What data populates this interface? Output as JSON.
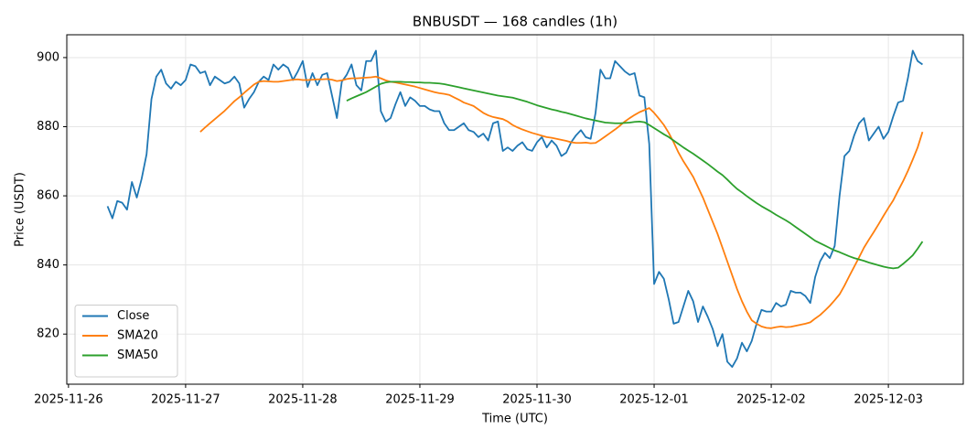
{
  "chart_data": {
    "type": "line",
    "title": "BNBUSDT — 168 candles (1h)",
    "x_label": "Time (UTC)",
    "y_label": "Price (USDT)",
    "x": [
      "2025-11-26T08:00",
      "2025-11-26T09:00",
      "2025-11-26T10:00",
      "2025-11-26T11:00",
      "2025-11-26T12:00",
      "2025-11-26T13:00",
      "2025-11-26T14:00",
      "2025-11-26T15:00",
      "2025-11-26T16:00",
      "2025-11-26T17:00",
      "2025-11-26T18:00",
      "2025-11-26T19:00",
      "2025-11-26T20:00",
      "2025-11-26T21:00",
      "2025-11-26T22:00",
      "2025-11-26T23:00",
      "2025-11-27T00:00",
      "2025-11-27T01:00",
      "2025-11-27T02:00",
      "2025-11-27T03:00",
      "2025-11-27T04:00",
      "2025-11-27T05:00",
      "2025-11-27T06:00",
      "2025-11-27T07:00",
      "2025-11-27T08:00",
      "2025-11-27T09:00",
      "2025-11-27T10:00",
      "2025-11-27T11:00",
      "2025-11-27T12:00",
      "2025-11-27T13:00",
      "2025-11-27T14:00",
      "2025-11-27T15:00",
      "2025-11-27T16:00",
      "2025-11-27T17:00",
      "2025-11-27T18:00",
      "2025-11-27T19:00",
      "2025-11-27T20:00",
      "2025-11-27T21:00",
      "2025-11-27T22:00",
      "2025-11-27T23:00",
      "2025-11-28T00:00",
      "2025-11-28T01:00",
      "2025-11-28T02:00",
      "2025-11-28T03:00",
      "2025-11-28T04:00",
      "2025-11-28T05:00",
      "2025-11-28T06:00",
      "2025-11-28T07:00",
      "2025-11-28T08:00",
      "2025-11-28T09:00",
      "2025-11-28T10:00",
      "2025-11-28T11:00",
      "2025-11-28T12:00",
      "2025-11-28T13:00",
      "2025-11-28T14:00",
      "2025-11-28T15:00",
      "2025-11-28T16:00",
      "2025-11-28T17:00",
      "2025-11-28T18:00",
      "2025-11-28T19:00",
      "2025-11-28T20:00",
      "2025-11-28T21:00",
      "2025-11-28T22:00",
      "2025-11-28T23:00",
      "2025-11-29T00:00",
      "2025-11-29T01:00",
      "2025-11-29T02:00",
      "2025-11-29T03:00",
      "2025-11-29T04:00",
      "2025-11-29T05:00",
      "2025-11-29T06:00",
      "2025-11-29T07:00",
      "2025-11-29T08:00",
      "2025-11-29T09:00",
      "2025-11-29T10:00",
      "2025-11-29T11:00",
      "2025-11-29T12:00",
      "2025-11-29T13:00",
      "2025-11-29T14:00",
      "2025-11-29T15:00",
      "2025-11-29T16:00",
      "2025-11-29T17:00",
      "2025-11-29T18:00",
      "2025-11-29T19:00",
      "2025-11-29T20:00",
      "2025-11-29T21:00",
      "2025-11-29T22:00",
      "2025-11-29T23:00",
      "2025-11-30T00:00",
      "2025-11-30T01:00",
      "2025-11-30T02:00",
      "2025-11-30T03:00",
      "2025-11-30T04:00",
      "2025-11-30T05:00",
      "2025-11-30T06:00",
      "2025-11-30T07:00",
      "2025-11-30T08:00",
      "2025-11-30T09:00",
      "2025-11-30T10:00",
      "2025-11-30T11:00",
      "2025-11-30T12:00",
      "2025-11-30T13:00",
      "2025-11-30T14:00",
      "2025-11-30T15:00",
      "2025-11-30T16:00",
      "2025-11-30T17:00",
      "2025-11-30T18:00",
      "2025-11-30T19:00",
      "2025-11-30T20:00",
      "2025-11-30T21:00",
      "2025-11-30T22:00",
      "2025-11-30T23:00",
      "2025-12-01T00:00",
      "2025-12-01T01:00",
      "2025-12-01T02:00",
      "2025-12-01T03:00",
      "2025-12-01T04:00",
      "2025-12-01T05:00",
      "2025-12-01T06:00",
      "2025-12-01T07:00",
      "2025-12-01T08:00",
      "2025-12-01T09:00",
      "2025-12-01T10:00",
      "2025-12-01T11:00",
      "2025-12-01T12:00",
      "2025-12-01T13:00",
      "2025-12-01T14:00",
      "2025-12-01T15:00",
      "2025-12-01T16:00",
      "2025-12-01T17:00",
      "2025-12-01T18:00",
      "2025-12-01T19:00",
      "2025-12-01T20:00",
      "2025-12-01T21:00",
      "2025-12-01T22:00",
      "2025-12-01T23:00",
      "2025-12-02T00:00",
      "2025-12-02T01:00",
      "2025-12-02T02:00",
      "2025-12-02T03:00",
      "2025-12-02T04:00",
      "2025-12-02T05:00",
      "2025-12-02T06:00",
      "2025-12-02T07:00",
      "2025-12-02T08:00",
      "2025-12-02T09:00",
      "2025-12-02T10:00",
      "2025-12-02T11:00",
      "2025-12-02T12:00",
      "2025-12-02T13:00",
      "2025-12-02T14:00",
      "2025-12-02T15:00",
      "2025-12-02T16:00",
      "2025-12-02T17:00",
      "2025-12-02T18:00",
      "2025-12-02T19:00",
      "2025-12-02T20:00",
      "2025-12-02T21:00",
      "2025-12-02T22:00",
      "2025-12-02T23:00",
      "2025-12-03T00:00",
      "2025-12-03T01:00",
      "2025-12-03T02:00",
      "2025-12-03T03:00",
      "2025-12-03T04:00",
      "2025-12-03T05:00",
      "2025-12-03T06:00",
      "2025-12-03T07:00"
    ],
    "series": [
      {
        "name": "Close",
        "color": "#1f77b4",
        "values": [
          857,
          853.5,
          858.5,
          858,
          856,
          864,
          859.5,
          865,
          872,
          888,
          894.5,
          896.5,
          892.5,
          891,
          893,
          892,
          893.5,
          898,
          897.5,
          895.5,
          896,
          892,
          894.5,
          893.5,
          892.5,
          893,
          894.5,
          892.5,
          885.5,
          888,
          890,
          893,
          894.5,
          893.5,
          898,
          896.5,
          898,
          897,
          893.5,
          896,
          899,
          891.5,
          895.5,
          892,
          895,
          895.5,
          889,
          882.5,
          893,
          895,
          898,
          892,
          890.5,
          899,
          899,
          902,
          884.5,
          881.5,
          882.5,
          886.5,
          890,
          886,
          888.5,
          887.5,
          886,
          886,
          885,
          884.5,
          884.5,
          881,
          879,
          879,
          880,
          881,
          879,
          878.5,
          877,
          878,
          876,
          881,
          881.5,
          873,
          874,
          873,
          874.5,
          875.5,
          873.5,
          873,
          875.5,
          877,
          874,
          876,
          874.5,
          871.5,
          872.5,
          875.5,
          877.5,
          879,
          877,
          876.5,
          884,
          896.5,
          894,
          894,
          899,
          897.5,
          896,
          895,
          895.5,
          889,
          888.5,
          875,
          834.5,
          838,
          836,
          830,
          823,
          823.5,
          828,
          832.5,
          829.5,
          823.5,
          828,
          825,
          821.5,
          816.5,
          820,
          812,
          810.5,
          813,
          817.5,
          815,
          818,
          823,
          827,
          826.5,
          826.5,
          829,
          828,
          828.5,
          832.5,
          832,
          832,
          831,
          829,
          836.5,
          841,
          843.5,
          842,
          845.5,
          860,
          871.5,
          873,
          877.5,
          881,
          882.5,
          876,
          878,
          880,
          876.5,
          878.5,
          883,
          887,
          887.5,
          894,
          902,
          899,
          898
        ]
      },
      {
        "name": "SMA20",
        "color": "#ff7f0e",
        "values": [
          null,
          null,
          null,
          null,
          null,
          null,
          null,
          null,
          null,
          null,
          null,
          null,
          null,
          null,
          null,
          null,
          null,
          null,
          null,
          878.5,
          879.8,
          881,
          882.2,
          883.4,
          884.6,
          886,
          887.4,
          888.5,
          889.8,
          891,
          892.2,
          893,
          893.2,
          893.1,
          893,
          893,
          893.2,
          893.4,
          893.6,
          893.7,
          893.5,
          893.5,
          893.6,
          893.7,
          893.7,
          893.8,
          893.6,
          893.2,
          893.4,
          893.8,
          894,
          894,
          894.1,
          894.2,
          894.3,
          894.5,
          894,
          893.4,
          893,
          892.8,
          892.5,
          892.2,
          891.9,
          891.6,
          891.2,
          890.8,
          890.4,
          890,
          889.7,
          889.5,
          889.2,
          888.5,
          887.8,
          887,
          886.5,
          886,
          885,
          884,
          883.3,
          882.8,
          882.5,
          882.2,
          881.5,
          880.5,
          879.8,
          879.2,
          878.7,
          878.2,
          877.8,
          877.4,
          877,
          876.8,
          876.5,
          876.2,
          875.9,
          875.5,
          875.3,
          875.3,
          875.4,
          875.2,
          875.3,
          876.2,
          877.2,
          878.2,
          879.2,
          880.3,
          881.5,
          882.5,
          883.4,
          884.2,
          884.8,
          885.4,
          884,
          882.3,
          880.5,
          878.2,
          875.5,
          872.5,
          870,
          867.8,
          865.5,
          862.5,
          859.5,
          856,
          852.5,
          849,
          845,
          841,
          837,
          833,
          829.5,
          826.5,
          824,
          823,
          822.2,
          821.8,
          821.7,
          822,
          822.2,
          822,
          822.1,
          822.4,
          822.7,
          823,
          823.4,
          824.5,
          825.5,
          826.8,
          828.2,
          829.8,
          831.5,
          834,
          836.8,
          839.5,
          842.2,
          845,
          847.3,
          849.5,
          851.8,
          854.2,
          856.5,
          858.7,
          861.5,
          864.2,
          867.2,
          870.5,
          874,
          878.5
        ]
      },
      {
        "name": "SMA50",
        "color": "#2ca02c",
        "values": [
          null,
          null,
          null,
          null,
          null,
          null,
          null,
          null,
          null,
          null,
          null,
          null,
          null,
          null,
          null,
          null,
          null,
          null,
          null,
          null,
          null,
          null,
          null,
          null,
          null,
          null,
          null,
          null,
          null,
          null,
          null,
          null,
          null,
          null,
          null,
          null,
          null,
          null,
          null,
          null,
          null,
          null,
          null,
          null,
          null,
          null,
          null,
          null,
          null,
          887.5,
          888.2,
          888.8,
          889.4,
          890,
          890.8,
          891.6,
          892.4,
          892.8,
          893,
          893,
          893,
          892.9,
          892.9,
          892.8,
          892.8,
          892.7,
          892.7,
          892.6,
          892.5,
          892.3,
          892,
          891.7,
          891.4,
          891.1,
          890.8,
          890.5,
          890.2,
          889.9,
          889.6,
          889.3,
          889,
          888.8,
          888.6,
          888.4,
          888,
          887.6,
          887.2,
          886.7,
          886.2,
          885.8,
          885.4,
          885,
          884.7,
          884.3,
          884,
          883.6,
          883.2,
          882.8,
          882.4,
          882.1,
          881.8,
          881.5,
          881.2,
          881.1,
          881,
          881,
          881.1,
          881.2,
          881.4,
          881.5,
          881.3,
          880.5,
          879.6,
          878.7,
          877.8,
          877,
          876,
          875,
          874,
          873.1,
          872.2,
          871.2,
          870.2,
          869.2,
          868.1,
          867,
          866,
          864.7,
          863.3,
          862,
          861,
          859.9,
          858.9,
          857.9,
          857,
          856.2,
          855.4,
          854.5,
          853.7,
          852.9,
          852,
          851,
          850,
          849,
          848,
          847,
          846.3,
          845.6,
          844.9,
          844.2,
          843.7,
          843.1,
          842.5,
          842,
          841.6,
          841.2,
          840.7,
          840.3,
          839.9,
          839.5,
          839.2,
          839,
          839.2,
          840.3,
          841.5,
          842.8,
          844.7,
          846.8
        ]
      }
    ],
    "xlim": [
      "2025-11-25T23:39",
      "2025-12-03T15:21"
    ],
    "xticks": [
      "2025-11-26",
      "2025-11-27",
      "2025-11-28",
      "2025-11-29",
      "2025-11-30",
      "2025-12-01",
      "2025-12-02",
      "2025-12-03"
    ],
    "ylim": [
      805.5,
      906.6
    ],
    "yticks": [
      820,
      840,
      860,
      880,
      900
    ],
    "grid": true,
    "legend": "lower-left"
  }
}
